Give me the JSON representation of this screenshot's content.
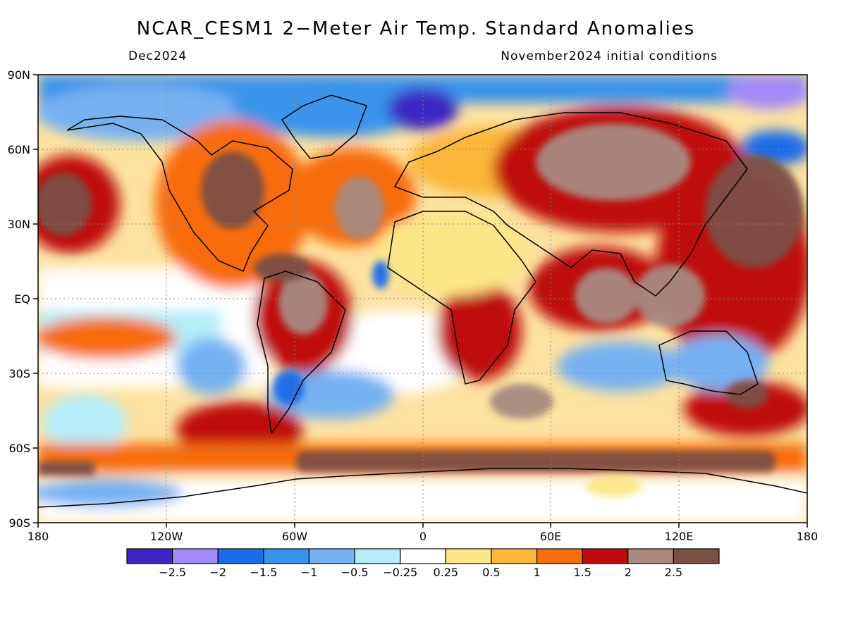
{
  "header": {
    "title": "NCAR_CESM1 2−Meter Air Temp. Standard Anomalies",
    "valid_month": "Dec2024",
    "initial_conditions": "November2024 initial conditions"
  },
  "map": {
    "projection": "cylindrical equidistant",
    "lon_range": [
      -180,
      180
    ],
    "lat_range": [
      -90,
      90
    ],
    "lat_labels": [
      "90N",
      "60N",
      "30N",
      "EQ",
      "30S",
      "60S",
      "90S"
    ],
    "lon_labels": [
      "180",
      "120W",
      "60W",
      "0",
      "60E",
      "120E",
      "180"
    ],
    "grid": true,
    "coastlines": true
  },
  "colorbar": {
    "colors": [
      "#3d25c2",
      "#a28af8",
      "#1e6ce6",
      "#3a93ea",
      "#76b1f2",
      "#b5ecf8",
      "#ffffff",
      "#fde687",
      "#fcb63a",
      "#f76d10",
      "#bf0b0b",
      "#a88a80",
      "#7c4f45"
    ],
    "tick_labels": [
      "−2.5",
      "−2",
      "−1.5",
      "−1",
      "−0.5",
      "−0.25",
      "0.25",
      "0.5",
      "1",
      "1.5",
      "2",
      "2.5"
    ]
  }
}
